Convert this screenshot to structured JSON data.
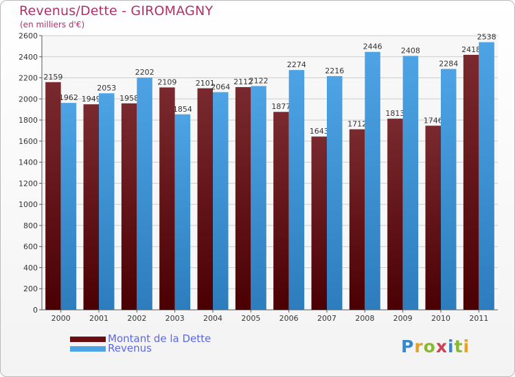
{
  "title": "Revenus/Dette - GIROMAGNY",
  "subtitle": "(en milliers d'€)",
  "logo_text": "Proxiti",
  "colors": {
    "dette": "#7a2a2e",
    "revenus": "#4da3e4",
    "title": "#b0306a",
    "legend_text": "#5a66ee",
    "grid": "#cccccc"
  },
  "legend": [
    {
      "label": "Montant de la Dette",
      "color": "#6a0d10"
    },
    {
      "label": "Revenus",
      "color": "#4da3e4"
    }
  ],
  "chart_data": {
    "type": "bar",
    "title": "Revenus/Dette - GIROMAGNY",
    "subtitle": "(en milliers d'€)",
    "categories": [
      "2000",
      "2001",
      "2002",
      "2003",
      "2004",
      "2005",
      "2006",
      "2007",
      "2008",
      "2009",
      "2010",
      "2011"
    ],
    "series": [
      {
        "name": "Montant de la Dette",
        "values": [
          2159,
          1949,
          1958,
          2109,
          2101,
          2112,
          1877,
          1643,
          1712,
          1813,
          1746,
          2418
        ]
      },
      {
        "name": "Revenus",
        "values": [
          1962,
          2053,
          2202,
          1854,
          2064,
          2122,
          2274,
          2216,
          2446,
          2408,
          2284,
          2538
        ]
      }
    ],
    "ylim": [
      0,
      2600
    ],
    "yticks": [
      0,
      200,
      400,
      600,
      800,
      1000,
      1200,
      1400,
      1600,
      1800,
      2000,
      2200,
      2400,
      2600
    ],
    "grid": true,
    "legend_position": "bottom-left"
  }
}
